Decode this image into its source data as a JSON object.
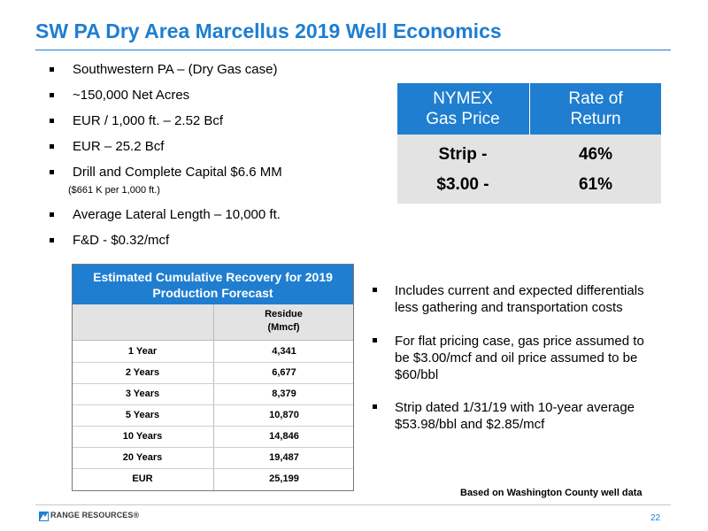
{
  "title": "SW PA Dry Area Marcellus 2019 Well Economics",
  "bullets": [
    "Southwestern PA – (Dry Gas case)",
    "~150,000 Net Acres",
    "EUR / 1,000 ft. – 2.52 Bcf",
    "EUR – 25.2 Bcf",
    "Drill and Complete Capital $6.6 MM",
    "Average Lateral Length – 10,000 ft.",
    "F&D - $0.32/mcf"
  ],
  "capital_note": "($661 K per 1,000 ft.)",
  "nymex_table": {
    "header_col1_line1": "NYMEX",
    "header_col1_line2": "Gas Price",
    "header_col2_line1": "Rate of",
    "header_col2_line2": "Return",
    "rows": [
      {
        "price": "Strip -",
        "rate": "46%"
      },
      {
        "price": "$3.00 -",
        "rate": "61%"
      }
    ]
  },
  "recovery_table": {
    "title_line1": "Estimated Cumulative Recovery for 2019",
    "title_line2": "Production Forecast",
    "col_header_line1": "Residue",
    "col_header_line2": "(Mmcf)",
    "rows": [
      {
        "period": "1 Year",
        "value": "4,341"
      },
      {
        "period": "2 Years",
        "value": "6,677"
      },
      {
        "period": "3 Years",
        "value": "8,379"
      },
      {
        "period": "5 Years",
        "value": "10,870"
      },
      {
        "period": "10 Years",
        "value": "14,846"
      },
      {
        "period": "20 Years",
        "value": "19,487"
      },
      {
        "period": "EUR",
        "value": "25,199"
      }
    ]
  },
  "right_bullets": [
    {
      "line1": "Includes current and expected differentials",
      "line2": "less gathering and transportation costs"
    },
    {
      "line1": "For flat pricing case, gas price assumed to",
      "line2": "be $3.00/mcf and oil price assumed to be",
      "line3": "$60/bbl"
    },
    {
      "line1": "Strip dated 1/31/19 with 10-year average",
      "line2": "$53.98/bbl and $2.85/mcf"
    }
  ],
  "footnote": "Based on Washington County well data",
  "footer": {
    "logo_text": "RANGE RESOURCES®",
    "page_number": "22"
  },
  "colors": {
    "accent": "#1f7ed0",
    "table_body": "#e3e3e3"
  }
}
